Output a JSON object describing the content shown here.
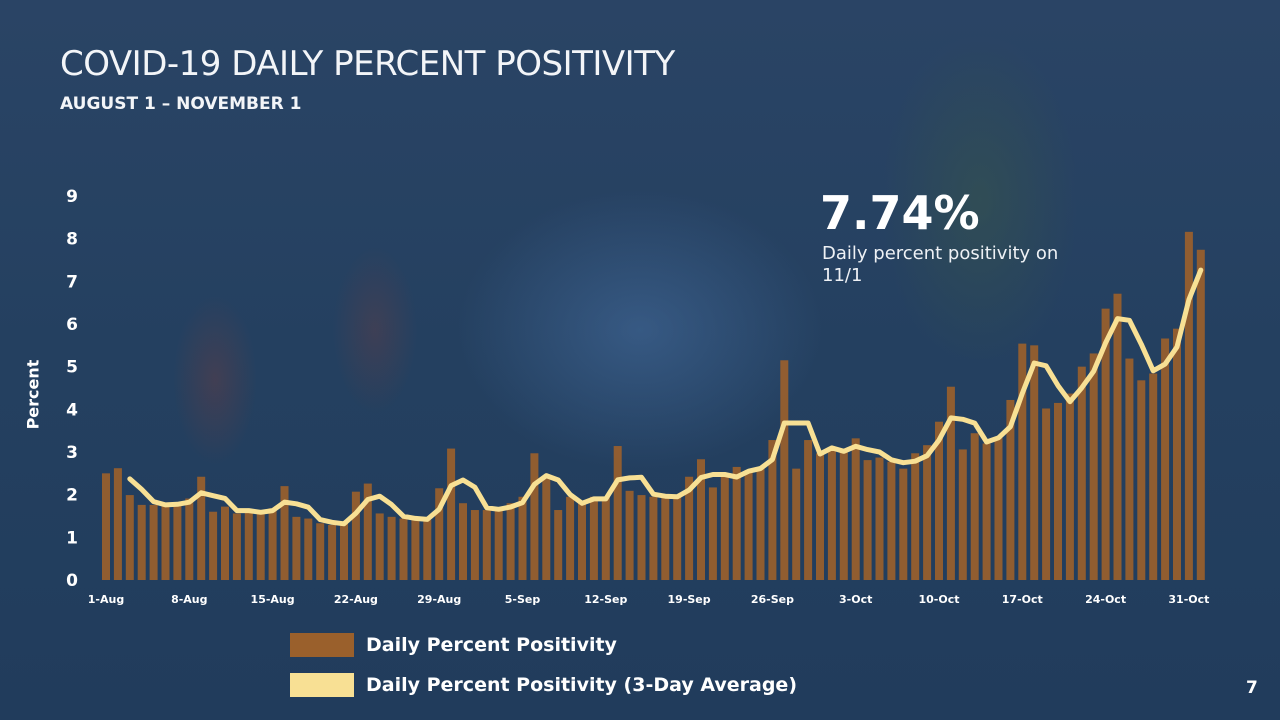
{
  "header": {
    "title": "COVID-19 DAILY PERCENT POSITIVITY",
    "subtitle": "AUGUST 1 – NOVEMBER 1"
  },
  "callout": {
    "value": "7.74%",
    "description": "Daily percent positivity on 11/1"
  },
  "page_number": "7",
  "colors": {
    "bar": "#9a602c",
    "line": "#f8e094"
  },
  "chart_data": {
    "type": "bar",
    "title": "COVID-19 DAILY PERCENT POSITIVITY",
    "xlabel": "",
    "ylabel": "Percent",
    "ylim": [
      0,
      9
    ],
    "y_ticks": [
      "0",
      "1",
      "2",
      "3",
      "4",
      "5",
      "6",
      "7",
      "8",
      "9"
    ],
    "x_tick_labels": [
      "1-Aug",
      "8-Aug",
      "15-Aug",
      "22-Aug",
      "29-Aug",
      "5-Sep",
      "12-Sep",
      "19-Sep",
      "26-Sep",
      "3-Oct",
      "10-Oct",
      "17-Oct",
      "24-Oct",
      "31-Oct"
    ],
    "x_tick_interval_days": 7,
    "grid": false,
    "legend_position": "bottom",
    "series": [
      {
        "name": "Daily Percent Positivity",
        "type": "bar",
        "values": [
          2.5,
          2.62,
          1.99,
          1.76,
          1.76,
          1.76,
          1.8,
          1.91,
          2.42,
          1.6,
          1.72,
          1.56,
          1.6,
          1.6,
          1.68,
          2.2,
          1.48,
          1.44,
          1.33,
          1.29,
          1.33,
          2.07,
          2.26,
          1.56,
          1.48,
          1.44,
          1.41,
          1.41,
          2.15,
          3.08,
          1.8,
          1.64,
          1.64,
          1.69,
          1.8,
          1.95,
          2.97,
          2.42,
          1.64,
          1.95,
          1.8,
          1.95,
          1.95,
          3.14,
          2.09,
          1.99,
          1.95,
          1.95,
          1.95,
          2.42,
          2.83,
          2.17,
          2.42,
          2.65,
          2.58,
          2.61,
          3.28,
          5.15,
          2.61,
          3.28,
          2.97,
          3.04,
          3.04,
          3.32,
          2.81,
          2.87,
          2.77,
          2.61,
          2.97,
          3.16,
          3.71,
          4.53,
          3.06,
          3.44,
          3.2,
          3.36,
          4.22,
          5.54,
          5.5,
          4.02,
          4.15,
          4.37,
          5.0,
          5.31,
          6.36,
          6.71,
          5.19,
          4.68,
          4.84,
          5.66,
          5.89,
          8.16,
          7.74
        ]
      },
      {
        "name": "Daily Percent Positivity (3-Day Average)",
        "type": "line",
        "derived_from": "Daily Percent Positivity",
        "window": 3
      }
    ]
  }
}
